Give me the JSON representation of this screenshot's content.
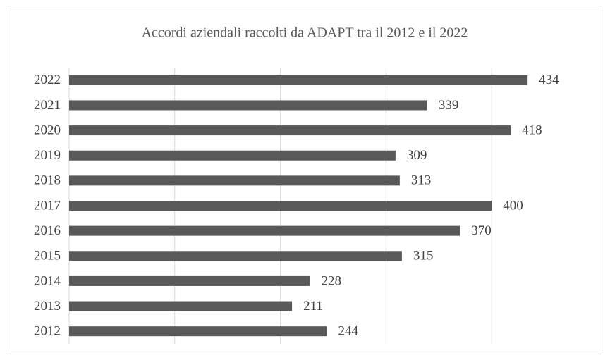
{
  "chart_data": {
    "type": "hbar",
    "title": "Accordi aziendali raccolti da ADAPT tra il 2012 e il 2022",
    "categories": [
      "2022",
      "2021",
      "2020",
      "2019",
      "2018",
      "2017",
      "2016",
      "2015",
      "2014",
      "2013",
      "2012"
    ],
    "values": [
      434,
      339,
      418,
      309,
      313,
      400,
      370,
      315,
      228,
      211,
      244
    ],
    "color": "#595959",
    "xlim": [
      0,
      500
    ],
    "xticks": [
      0,
      100,
      200,
      300,
      400
    ],
    "grid": true
  }
}
